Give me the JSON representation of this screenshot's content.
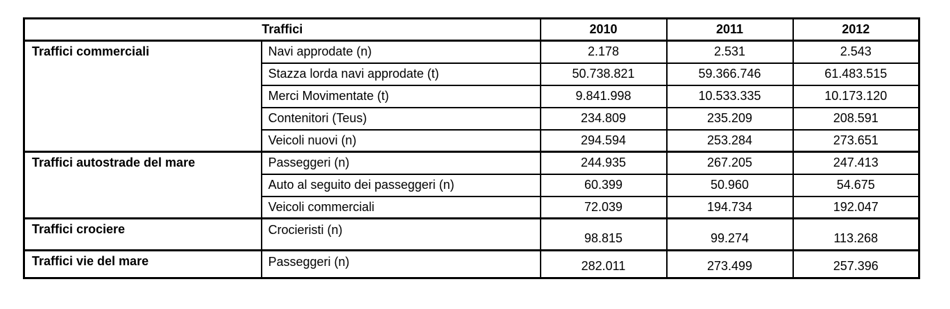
{
  "table": {
    "title": "Traffici",
    "years": [
      "2010",
      "2011",
      "2012"
    ],
    "groups": [
      {
        "label": "Traffici commerciali",
        "rows": [
          {
            "label": "Navi approdate (n)",
            "values": [
              "2.178",
              "2.531",
              "2.543"
            ]
          },
          {
            "label": "Stazza lorda navi approdate (t)",
            "values": [
              "50.738.821",
              "59.366.746",
              "61.483.515"
            ]
          },
          {
            "label": "Merci Movimentate (t)",
            "values": [
              "9.841.998",
              "10.533.335",
              "10.173.120"
            ]
          },
          {
            "label": "Contenitori (Teus)",
            "values": [
              "234.809",
              "235.209",
              "208.591"
            ]
          },
          {
            "label": "Veicoli nuovi (n)",
            "values": [
              "294.594",
              "253.284",
              "273.651"
            ]
          }
        ]
      },
      {
        "label": "Traffici autostrade del mare",
        "rows": [
          {
            "label": "Passeggeri (n)",
            "values": [
              "244.935",
              "267.205",
              "247.413"
            ]
          },
          {
            "label": "Auto al seguito dei passeggeri (n)",
            "values": [
              "60.399",
              "50.960",
              "54.675"
            ]
          },
          {
            "label": "Veicoli commerciali",
            "values": [
              "72.039",
              "194.734",
              "192.047"
            ]
          }
        ]
      },
      {
        "label": "Traffici crociere",
        "rows": [
          {
            "label": "Crocieristi (n)",
            "values": [
              "98.815",
              "99.274",
              "113.268"
            ]
          }
        ]
      },
      {
        "label": "Traffici vie del mare",
        "rows": [
          {
            "label": "Passeggeri (n)",
            "values": [
              "282.011",
              "273.499",
              "257.396"
            ]
          }
        ]
      }
    ]
  }
}
